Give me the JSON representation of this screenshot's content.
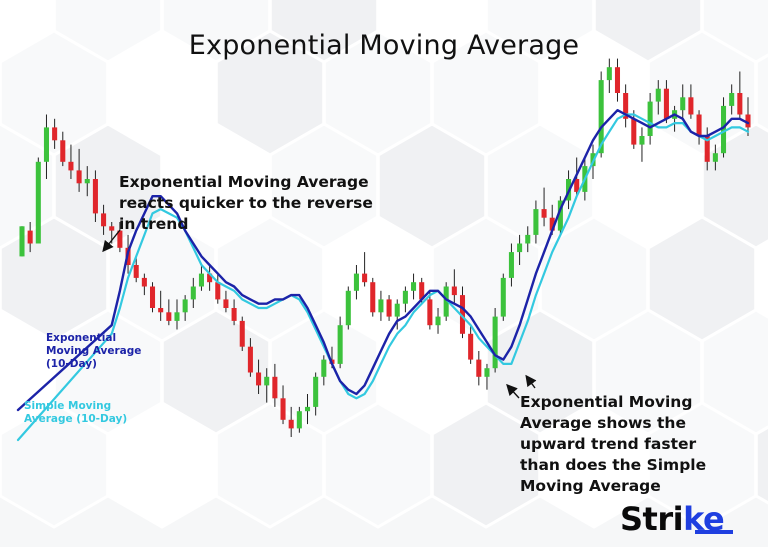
{
  "title": "Exponential Moving Average",
  "annotation_top": [
    "Exponential Moving Average",
    "reacts quicker to the reverse",
    "in trend"
  ],
  "annotation_bottom": [
    "Exponential Moving",
    "Average shows the",
    "upward trend faster",
    "than does the Simple",
    "Moving Average"
  ],
  "brand": {
    "main": "Stri",
    "accent": "ke"
  },
  "colors": {
    "up": "#3cc23c",
    "down": "#e0262b",
    "ema": "#1c23a8",
    "sma": "#33c9e0",
    "wick": "#222222",
    "brand_accent": "#1f3fe0"
  },
  "chart_data": {
    "type": "candlestick",
    "series": [
      {
        "name": "Exponential Moving Average (10-Day)",
        "label_lines": [
          "Exponential",
          "Moving Average",
          "(10-Day)"
        ]
      },
      {
        "name": "Simple Moving Average (10-Day)",
        "label_lines": [
          "Simple Moving",
          "Average (10-Day)"
        ]
      }
    ],
    "ohlc": [
      [
        52,
        59,
        52,
        59
      ],
      [
        58,
        60,
        53,
        55
      ],
      [
        55,
        75,
        55,
        74
      ],
      [
        74,
        85,
        70,
        82
      ],
      [
        82,
        84,
        77,
        79
      ],
      [
        79,
        81,
        73,
        74
      ],
      [
        74,
        78,
        70,
        72
      ],
      [
        72,
        77,
        67,
        69
      ],
      [
        69,
        73,
        66,
        70
      ],
      [
        70,
        72,
        60,
        62
      ],
      [
        62,
        64,
        57,
        59
      ],
      [
        59,
        60,
        55,
        58
      ],
      [
        58,
        60,
        53,
        54
      ],
      [
        54,
        57,
        48,
        50
      ],
      [
        50,
        52,
        46,
        47
      ],
      [
        47,
        48,
        43,
        45
      ],
      [
        45,
        46,
        39,
        40
      ],
      [
        40,
        44,
        37,
        39
      ],
      [
        39,
        42,
        36,
        37
      ],
      [
        37,
        42,
        35,
        39
      ],
      [
        39,
        43,
        37,
        42
      ],
      [
        42,
        47,
        40,
        45
      ],
      [
        45,
        50,
        44,
        48
      ],
      [
        48,
        50,
        44,
        46
      ],
      [
        46,
        48,
        41,
        42
      ],
      [
        42,
        44,
        39,
        40
      ],
      [
        40,
        42,
        36,
        37
      ],
      [
        37,
        38,
        30,
        31
      ],
      [
        31,
        33,
        24,
        25
      ],
      [
        25,
        28,
        20,
        22
      ],
      [
        22,
        26,
        18,
        24
      ],
      [
        24,
        27,
        17,
        19
      ],
      [
        19,
        22,
        13,
        14
      ],
      [
        14,
        17,
        10,
        12
      ],
      [
        12,
        17,
        11,
        16
      ],
      [
        16,
        20,
        13,
        17
      ],
      [
        17,
        25,
        15,
        24
      ],
      [
        24,
        29,
        22,
        28
      ],
      [
        28,
        31,
        26,
        27
      ],
      [
        27,
        38,
        26,
        36
      ],
      [
        36,
        45,
        35,
        44
      ],
      [
        44,
        50,
        42,
        48
      ],
      [
        48,
        53,
        45,
        46
      ],
      [
        46,
        47,
        38,
        39
      ],
      [
        39,
        44,
        37,
        42
      ],
      [
        42,
        43,
        37,
        38
      ],
      [
        38,
        42,
        35,
        41
      ],
      [
        41,
        45,
        39,
        44
      ],
      [
        44,
        48,
        42,
        46
      ],
      [
        46,
        47,
        41,
        42
      ],
      [
        42,
        44,
        35,
        36
      ],
      [
        36,
        40,
        34,
        38
      ],
      [
        38,
        46,
        37,
        45
      ],
      [
        45,
        49,
        41,
        43
      ],
      [
        43,
        45,
        33,
        34
      ],
      [
        34,
        36,
        27,
        28
      ],
      [
        28,
        30,
        22,
        24
      ],
      [
        24,
        27,
        21,
        26
      ],
      [
        26,
        40,
        25,
        38
      ],
      [
        38,
        48,
        37,
        47
      ],
      [
        47,
        55,
        45,
        53
      ],
      [
        53,
        57,
        50,
        55
      ],
      [
        55,
        59,
        53,
        57
      ],
      [
        57,
        65,
        55,
        63
      ],
      [
        63,
        68,
        59,
        61
      ],
      [
        61,
        64,
        57,
        58
      ],
      [
        58,
        66,
        57,
        65
      ],
      [
        65,
        72,
        63,
        70
      ],
      [
        70,
        75,
        66,
        67
      ],
      [
        67,
        75,
        65,
        73
      ],
      [
        73,
        78,
        70,
        76
      ],
      [
        76,
        95,
        75,
        93
      ],
      [
        93,
        98,
        90,
        96
      ],
      [
        96,
        98,
        88,
        90
      ],
      [
        90,
        92,
        82,
        84
      ],
      [
        84,
        86,
        77,
        78
      ],
      [
        78,
        82,
        74,
        80
      ],
      [
        80,
        90,
        78,
        88
      ],
      [
        88,
        93,
        85,
        91
      ],
      [
        91,
        93,
        83,
        84
      ],
      [
        84,
        87,
        81,
        86
      ],
      [
        86,
        92,
        84,
        89
      ],
      [
        89,
        92,
        84,
        85
      ],
      [
        85,
        86,
        78,
        80
      ],
      [
        80,
        82,
        72,
        74
      ],
      [
        74,
        78,
        72,
        76
      ],
      [
        76,
        89,
        75,
        87
      ],
      [
        87,
        92,
        85,
        90
      ],
      [
        90,
        95,
        84,
        85
      ],
      [
        85,
        89,
        80,
        82
      ]
    ],
    "ema": [
      36,
      44,
      53,
      58,
      62,
      66,
      66,
      64,
      62,
      58,
      55,
      52,
      50,
      48,
      46,
      45,
      43,
      42,
      41,
      41,
      42,
      42,
      43,
      43,
      40,
      36,
      32,
      27,
      23,
      21,
      20,
      22,
      26,
      30,
      34,
      37,
      38,
      40,
      42,
      44,
      44,
      42,
      41,
      40,
      38,
      35,
      32,
      29,
      28,
      31,
      36,
      42,
      48,
      53,
      58,
      63,
      67,
      71,
      75,
      79,
      82,
      84,
      86,
      85,
      84,
      83,
      82,
      83,
      84,
      85,
      84,
      81,
      80,
      80,
      81,
      82,
      84,
      84,
      83
    ],
    "sma": [
      34,
      40,
      47,
      52,
      57,
      62,
      63,
      62,
      61,
      58,
      54,
      50,
      48,
      46,
      45,
      44,
      42,
      41,
      40,
      40,
      41,
      42,
      43,
      42,
      39,
      35,
      31,
      27,
      23,
      20,
      19,
      20,
      23,
      27,
      31,
      34,
      36,
      39,
      41,
      43,
      44,
      42,
      40,
      38,
      36,
      33,
      31,
      29,
      27,
      27,
      32,
      37,
      43,
      48,
      53,
      57,
      61,
      66,
      70,
      74,
      78,
      81,
      84,
      85,
      85,
      84,
      83,
      82,
      82,
      83,
      83,
      81,
      80,
      79,
      80,
      81,
      82,
      82,
      81
    ]
  }
}
